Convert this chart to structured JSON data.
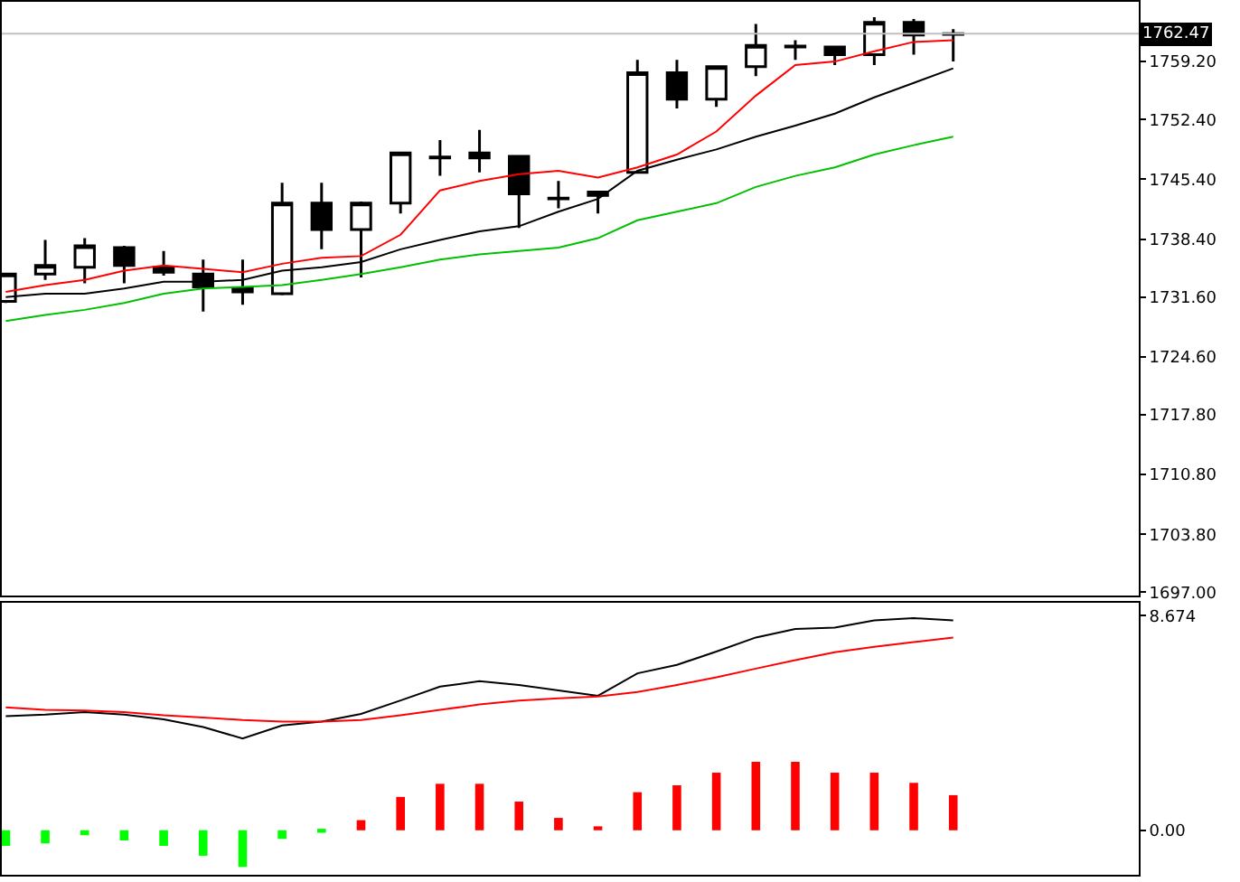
{
  "chart_data": [
    {
      "type": "candlestick",
      "color": "#000000",
      "tick_labels": "y",
      "categories": [
        null,
        null,
        null,
        null,
        null,
        null,
        null,
        null,
        null,
        null,
        null,
        null,
        null,
        null,
        null,
        null,
        null,
        null,
        null,
        null,
        null,
        null,
        null,
        null,
        null
      ],
      "ohlc": [
        [
          1731.1,
          1734.3,
          1730.9,
          1734.3
        ],
        [
          1734.3,
          1738.3,
          1733.6,
          1735.3
        ],
        [
          1735.1,
          1738.5,
          1733.2,
          1737.6
        ],
        [
          1737.4,
          1737.6,
          1733.2,
          1735.3
        ],
        [
          1735.1,
          1737.0,
          1734.1,
          1734.5
        ],
        [
          1734.3,
          1736.0,
          1729.9,
          1732.8
        ],
        [
          1732.2,
          1736.0,
          1730.7,
          1732.6
        ],
        [
          1732.0,
          1745.0,
          1731.8,
          1742.6
        ],
        [
          1742.6,
          1745.0,
          1737.2,
          1739.5
        ],
        [
          1739.5,
          1742.8,
          1733.9,
          1742.6
        ],
        [
          1742.6,
          1748.5,
          1741.4,
          1748.5
        ],
        [
          1747.9,
          1750.0,
          1745.8,
          1748.0
        ],
        [
          1748.5,
          1751.2,
          1746.2,
          1747.9
        ],
        [
          1748.1,
          1748.1,
          1739.7,
          1743.7
        ],
        [
          1743.1,
          1745.2,
          1742.0,
          1743.2
        ],
        [
          1743.5,
          1743.9,
          1741.4,
          1743.9
        ],
        [
          1746.2,
          1759.4,
          1746.2,
          1757.9
        ],
        [
          1757.9,
          1759.4,
          1753.7,
          1754.8
        ],
        [
          1754.8,
          1758.6,
          1753.9,
          1758.6
        ],
        [
          1758.6,
          1763.6,
          1757.5,
          1761.1
        ],
        [
          1760.9,
          1761.7,
          1759.4,
          1761.0
        ],
        [
          1760.9,
          1760.9,
          1758.8,
          1760.0
        ],
        [
          1760.0,
          1764.4,
          1758.8,
          1763.8
        ],
        [
          1763.8,
          1764.2,
          1760.0,
          1762.3
        ],
        [
          1762.4,
          1763.0,
          1759.2,
          1762.47
        ]
      ],
      "series": [
        {
          "type": "line",
          "color": "#ff0000",
          "values": [
            1732.2,
            1733.0,
            1733.6,
            1734.7,
            1735.3,
            1734.9,
            1734.5,
            1735.5,
            1736.2,
            1736.4,
            1738.9,
            1744.1,
            1745.2,
            1746.0,
            1746.4,
            1745.6,
            1746.8,
            1748.3,
            1751.0,
            1755.2,
            1758.8,
            1759.2,
            1760.4,
            1761.5,
            1761.7
          ]
        },
        {
          "type": "line",
          "color": "#000000",
          "values": [
            1731.6,
            1732.0,
            1732.0,
            1732.6,
            1733.4,
            1733.4,
            1733.6,
            1734.7,
            1735.1,
            1735.7,
            1737.2,
            1738.3,
            1739.3,
            1739.9,
            1741.6,
            1743.1,
            1746.4,
            1747.7,
            1748.9,
            1750.4,
            1751.7,
            1753.1,
            1755.0,
            1756.7,
            1758.4
          ]
        },
        {
          "type": "line",
          "color": "#00c000",
          "values": [
            1728.8,
            1729.5,
            1730.1,
            1730.9,
            1732.0,
            1732.6,
            1732.8,
            1733.0,
            1733.6,
            1734.3,
            1735.1,
            1736.0,
            1736.6,
            1737.0,
            1737.4,
            1738.5,
            1740.6,
            1741.6,
            1742.6,
            1744.5,
            1745.8,
            1746.8,
            1748.3,
            1749.4,
            1750.4
          ]
        }
      ],
      "ylim": [
        1696.6,
        1766.2
      ],
      "yticks": [
        {
          "value": 1697.0,
          "label": "1697.00"
        },
        {
          "value": 1703.8,
          "label": "1703.80"
        },
        {
          "value": 1710.8,
          "label": "1710.80"
        },
        {
          "value": 1717.8,
          "label": "1717.80"
        },
        {
          "value": 1724.6,
          "label": "1724.60"
        },
        {
          "value": 1731.6,
          "label": "1731.60"
        },
        {
          "value": 1738.4,
          "label": "1738.40"
        },
        {
          "value": 1745.4,
          "label": "1745.40"
        },
        {
          "value": 1752.4,
          "label": "1752.40"
        },
        {
          "value": 1759.2,
          "label": "1759.20"
        }
      ],
      "ref_lines": [
        {
          "axis": "y",
          "value": 1762.47,
          "label": "1762.47",
          "color": "#c0c0c0"
        }
      ]
    },
    {
      "type": "bar",
      "tick_labels": "y",
      "categories": [
        null,
        null,
        null,
        null,
        null,
        null,
        null,
        null,
        null,
        null,
        null,
        null,
        null,
        null,
        null,
        null,
        null,
        null,
        null,
        null,
        null,
        null,
        null,
        null,
        null
      ],
      "series": [
        {
          "type": "bar",
          "colors": [
            "#00ff00",
            "#00ff00",
            "#00ff00",
            "#00ff00",
            "#00ff00",
            "#00ff00",
            "#00ff00",
            "#00ff00",
            "#00ff00",
            "#ff0000",
            "#ff0000",
            "#ff0000",
            "#ff0000",
            "#ff0000",
            "#ff0000",
            "#ff0000",
            "#ff0000",
            "#ff0000",
            "#ff0000",
            "#ff0000",
            "#ff0000",
            "#ff0000",
            "#ff0000",
            "#ff0000",
            "#ff0000"
          ],
          "values": [
            -0.63,
            -0.53,
            -0.2,
            -0.41,
            -0.63,
            -1.03,
            -1.48,
            -0.35,
            -0.1,
            0.41,
            1.35,
            1.88,
            1.88,
            1.16,
            0.5,
            0.16,
            1.54,
            1.82,
            2.33,
            2.77,
            2.77,
            2.33,
            2.33,
            1.92,
            1.42
          ]
        },
        {
          "type": "line",
          "color": "#000000",
          "values": [
            4.62,
            4.68,
            4.78,
            4.68,
            4.49,
            4.18,
            3.71,
            4.24,
            4.4,
            4.71,
            5.25,
            5.81,
            6.03,
            5.88,
            5.66,
            5.44,
            6.35,
            6.69,
            7.23,
            7.8,
            8.14,
            8.2,
            8.49,
            8.58,
            8.49
          ]
        },
        {
          "type": "line",
          "color": "#ff0000",
          "values": [
            4.97,
            4.87,
            4.84,
            4.78,
            4.65,
            4.56,
            4.46,
            4.4,
            4.4,
            4.46,
            4.65,
            4.87,
            5.09,
            5.25,
            5.34,
            5.41,
            5.59,
            5.88,
            6.19,
            6.54,
            6.88,
            7.2,
            7.42,
            7.61,
            7.8
          ]
        }
      ],
      "ylim": [
        -1.8,
        9.2
      ],
      "yticks": [
        {
          "value": 0,
          "label": "0.00"
        },
        8.674
      ]
    }
  ]
}
